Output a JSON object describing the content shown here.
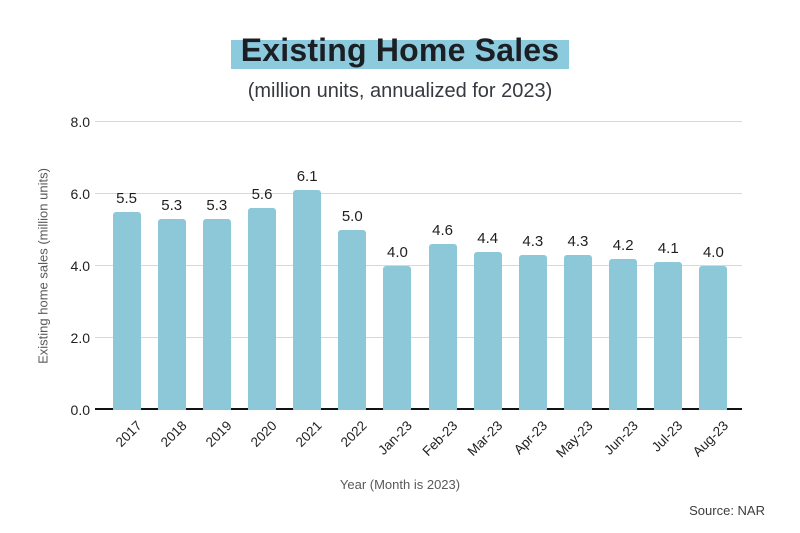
{
  "page": {
    "background": "#ffffff"
  },
  "chart_data": {
    "type": "bar",
    "title": "Existing Home Sales",
    "subtitle": "(million units, annualized for 2023)",
    "categories": [
      "2017",
      "2018",
      "2019",
      "2020",
      "2021",
      "2022",
      "Jan-23",
      "Feb-23",
      "Mar-23",
      "Apr-23",
      "May-23",
      "Jun-23",
      "Jul-23",
      "Aug-23"
    ],
    "values": [
      5.5,
      5.3,
      5.3,
      5.6,
      6.1,
      5.0,
      4.0,
      4.6,
      4.4,
      4.3,
      4.3,
      4.2,
      4.1,
      4.0
    ],
    "value_labels": [
      "5.5",
      "5.3",
      "5.3",
      "5.6",
      "6.1",
      "5.0",
      "4.0",
      "4.6",
      "4.4",
      "4.3",
      "4.3",
      "4.2",
      "4.1",
      "4.0"
    ],
    "xlabel": "Year (Month is 2023)",
    "ylabel": "Existing home sales (million units)",
    "y_ticks": [
      "0.0",
      "2.0",
      "4.0",
      "6.0",
      "8.0"
    ],
    "ylim": [
      0,
      8
    ],
    "grid": true,
    "legend_position": "none",
    "bar_color": "#8DC8D9",
    "title_highlight_color": "#8CCADD",
    "gridline_color": "#d8d8d8",
    "axis_color": "#121212",
    "source": "Source: NAR"
  }
}
